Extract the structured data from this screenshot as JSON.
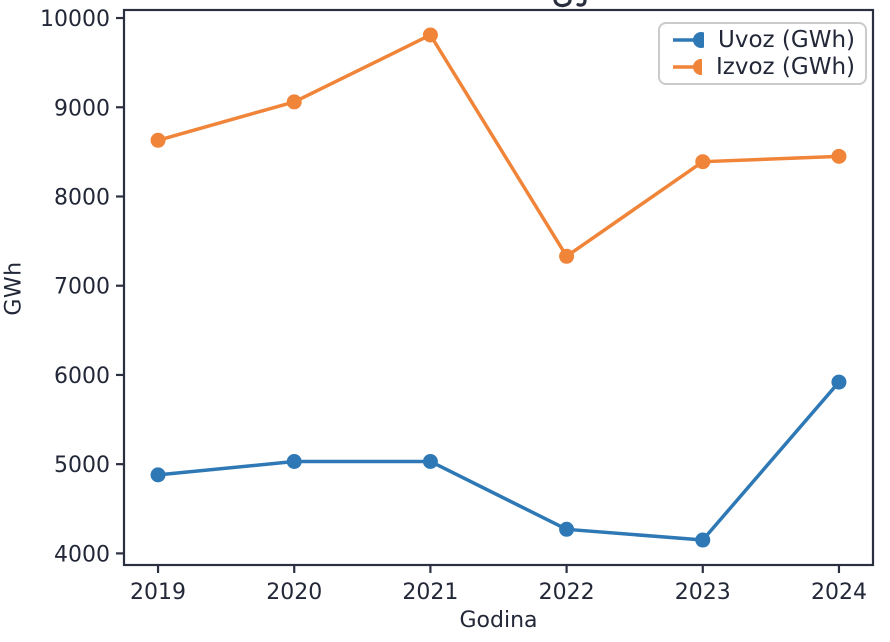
{
  "figure": {
    "title_cropped_top": true
  },
  "chart_data": {
    "type": "line",
    "title": "",
    "x": [
      2019,
      2020,
      2021,
      2022,
      2023,
      2024
    ],
    "xlabel": "Godina",
    "ylabel": "GWh",
    "yticks": [
      4000,
      5000,
      6000,
      7000,
      8000,
      9000,
      10000
    ],
    "xlim": [
      2018.75,
      2024.25
    ],
    "ylim": [
      3870,
      10090
    ],
    "grid": false,
    "legend_position": "upper right",
    "series": [
      {
        "name": "Uvoz (GWh)",
        "color": "#2e79b5",
        "values": [
          4880,
          5030,
          5030,
          4270,
          4150,
          5920
        ]
      },
      {
        "name": "Izvoz (GWh)",
        "color": "#f08438",
        "values": [
          8630,
          9060,
          9810,
          7330,
          8390,
          8450
        ]
      }
    ],
    "style": {
      "spine_color": "#2b3040",
      "text_color": "#232838",
      "plot_background": "#ffffff",
      "line_width": 3.5,
      "marker_radius": 7.5
    }
  }
}
